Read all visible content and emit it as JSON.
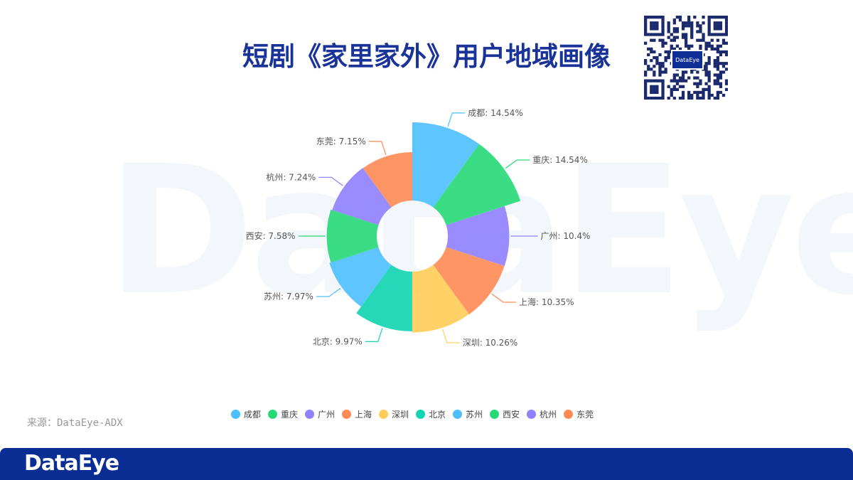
{
  "header": {
    "title": "短剧《家里家外》用户地域画像"
  },
  "watermark": {
    "text": "DataEye"
  },
  "qr": {
    "logo_text": "DataEye"
  },
  "source_text": "来源：DataEye-ADX",
  "footer": {
    "logo_text": "DataEye",
    "color": "#0a2d94"
  },
  "chart_data": {
    "type": "pie",
    "variant": "nightingale-rose",
    "categories": [
      "成都",
      "重庆",
      "广州",
      "上海",
      "深圳",
      "北京",
      "苏州",
      "西安",
      "杭州",
      "东莞"
    ],
    "values": [
      14.54,
      14.54,
      10.4,
      10.35,
      10.26,
      9.97,
      7.97,
      7.58,
      7.24,
      7.15
    ],
    "labels": [
      "成都: 14.54%",
      "重庆: 14.54%",
      "广州: 10.4%",
      "上海: 10.35%",
      "深圳: 10.26%",
      "北京: 9.97%",
      "苏州: 7.97%",
      "西安: 7.58%",
      "杭州: 7.24%",
      "东莞: 7.15%"
    ],
    "colors": [
      "#4dbfff",
      "#26d977",
      "#8f80ff",
      "#ff8a54",
      "#ffcc55",
      "#0fd4b0",
      "#4dbfff",
      "#26d977",
      "#8f80ff",
      "#ff8a54"
    ],
    "legend_position": "bottom"
  }
}
